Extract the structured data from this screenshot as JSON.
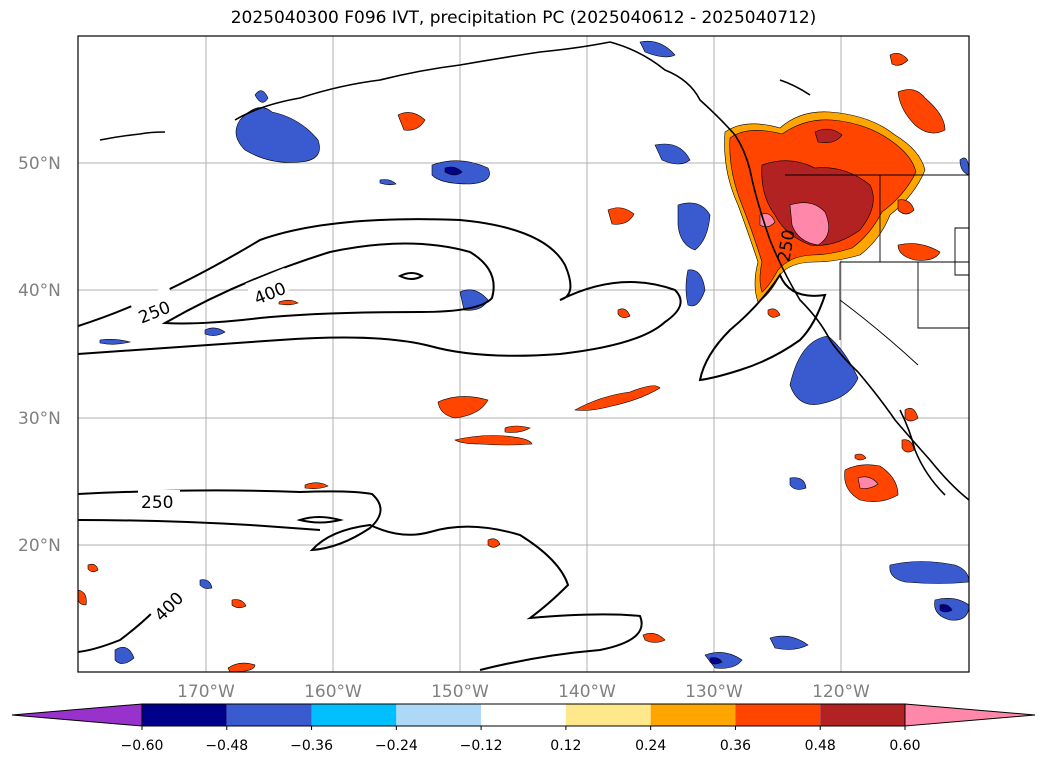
{
  "title": "2025040300 F096 IVT, precipitation PC (2025040612 - 2025040712)",
  "map": {
    "lat_labels": [
      "50°N",
      "40°N",
      "30°N",
      "20°N"
    ],
    "lon_labels": [
      "170°W",
      "160°W",
      "150°W",
      "140°W",
      "130°W",
      "120°W"
    ],
    "ivt_contour_labels": [
      "250",
      "400",
      "250",
      "400",
      "250"
    ]
  },
  "colorbar": {
    "tick_labels": [
      "−0.60",
      "−0.48",
      "−0.36",
      "−0.24",
      "−0.12",
      "0.12",
      "0.24",
      "0.36",
      "0.48",
      "0.60"
    ],
    "colors": [
      "#9932cc",
      "#00008b",
      "#3a5bd0",
      "#00bfff",
      "#add8f6",
      "#ffffff",
      "#ffe88c",
      "#ffa500",
      "#ff4500",
      "#b22222",
      "#ff88aa"
    ]
  }
}
